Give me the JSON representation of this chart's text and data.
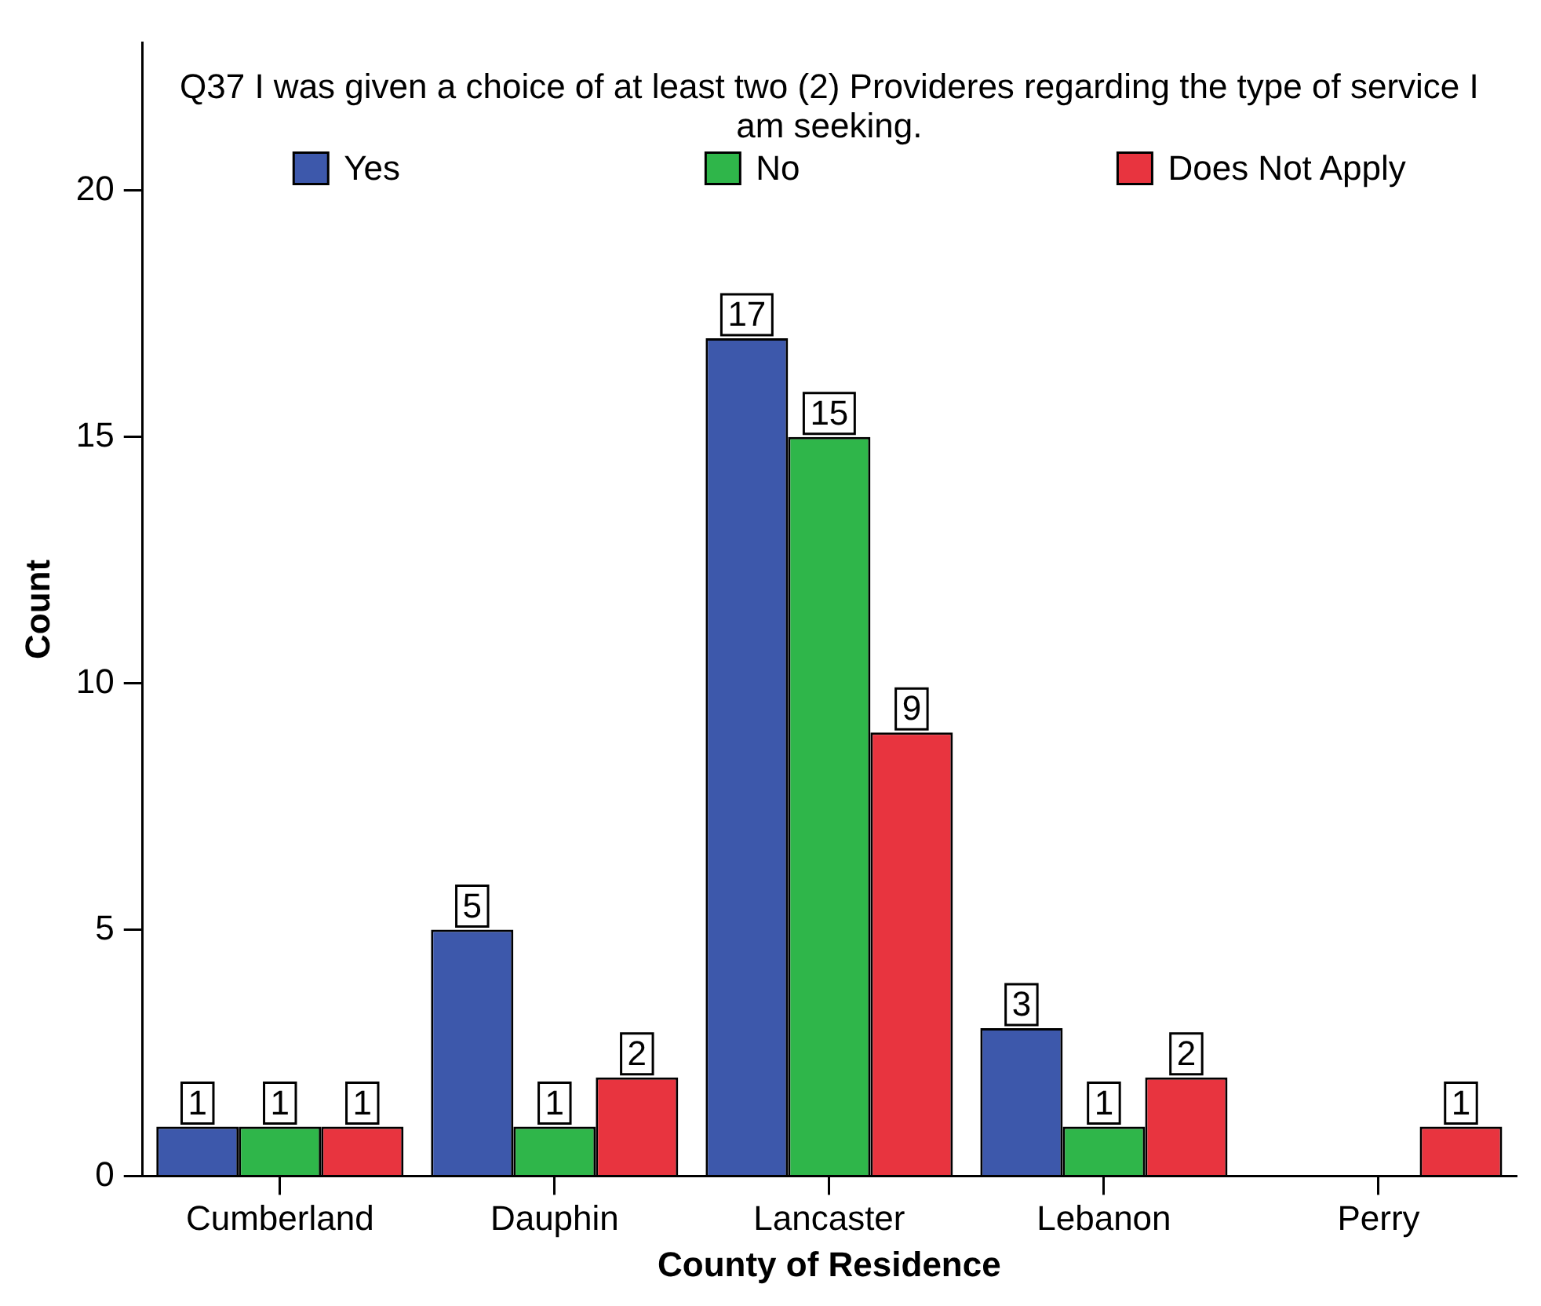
{
  "chart_data": {
    "type": "bar",
    "title": "Q37 I was given a choice of at least two (2) Provideres regarding the type of service I am seeking.",
    "xlabel": "County of Residence",
    "ylabel": "Count",
    "categories": [
      "Cumberland",
      "Dauphin",
      "Lancaster",
      "Lebanon",
      "Perry"
    ],
    "series": [
      {
        "name": "Yes",
        "color": "#3d58ab",
        "values": [
          1,
          5,
          17,
          3,
          null
        ]
      },
      {
        "name": "No",
        "color": "#2fb64a",
        "values": [
          1,
          1,
          15,
          1,
          null
        ]
      },
      {
        "name": "Does Not Apply",
        "color": "#e8343f",
        "values": [
          1,
          2,
          9,
          2,
          1
        ]
      }
    ],
    "ylim": [
      0,
      23
    ],
    "yticks": [
      0,
      5,
      10,
      15,
      20
    ],
    "grid": false,
    "legend": "top",
    "data_labels": true
  }
}
